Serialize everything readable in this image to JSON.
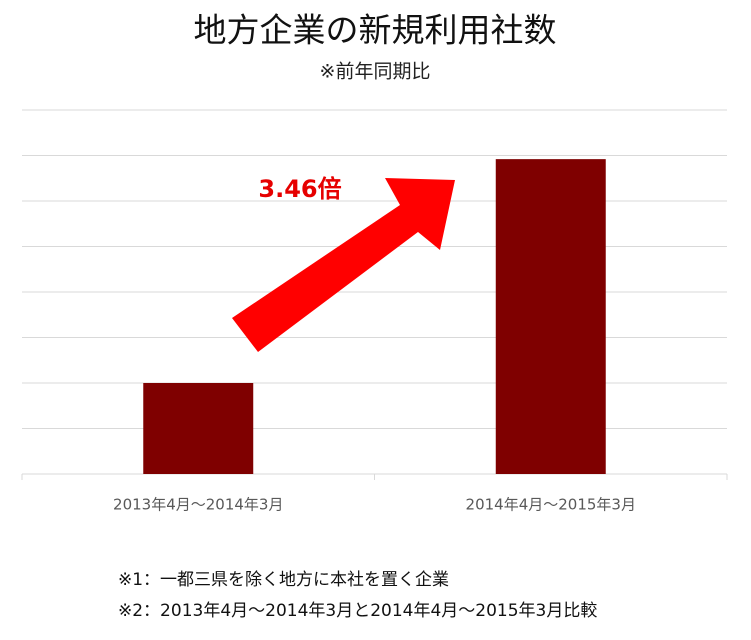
{
  "chart_data": {
    "type": "bar",
    "title": "地方企業の新規利用社数",
    "subtitle": "※前年同期比",
    "categories": [
      "2013年4月～2014年3月",
      "2014年4月～2015年3月"
    ],
    "values": [
      2,
      6.92
    ],
    "color": "#7f0000",
    "ylim": [
      0,
      8
    ],
    "yticks": [
      0,
      1,
      2,
      3,
      4,
      5,
      6,
      7,
      8
    ],
    "grid": true,
    "annotation": "3.46倍",
    "notes": [
      "※1：一都三県を除く地方に本社を置く企業",
      "※2：2013年4月～2014年3月と2014年4月～2015年3月比較"
    ]
  }
}
